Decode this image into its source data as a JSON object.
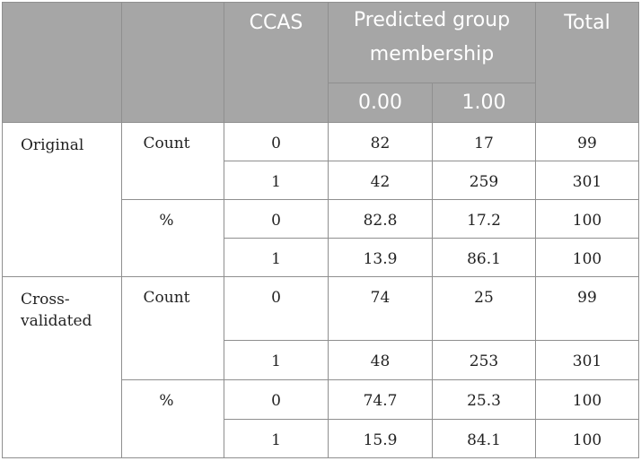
{
  "header": {
    "ccas": "CCAS",
    "predicted": "Predicted group membership",
    "total": "Total",
    "col_0": "0.00",
    "col_1": "1.00"
  },
  "sections": [
    {
      "label": "Original",
      "rows": [
        {
          "type": "Count",
          "ccas": "0",
          "v0": "82",
          "v1": "17",
          "total": "99"
        },
        {
          "type": "",
          "ccas": "1",
          "v0": "42",
          "v1": "259",
          "total": "301"
        },
        {
          "type": "%",
          "ccas": "0",
          "v0": "82.8",
          "v1": "17.2",
          "total": "100"
        },
        {
          "type": "",
          "ccas": "1",
          "v0": "13.9",
          "v1": "86.1",
          "total": "100"
        }
      ]
    },
    {
      "label": "Cross-validated",
      "rows": [
        {
          "type": "Count",
          "ccas": "0",
          "v0": "74",
          "v1": "25",
          "total": "99"
        },
        {
          "type": "",
          "ccas": "1",
          "v0": "48",
          "v1": "253",
          "total": "301"
        },
        {
          "type": "%",
          "ccas": "0",
          "v0": "74.7",
          "v1": "25.3",
          "total": "100"
        },
        {
          "type": "",
          "ccas": "1",
          "v0": "15.9",
          "v1": "84.1",
          "total": "100"
        }
      ]
    }
  ]
}
